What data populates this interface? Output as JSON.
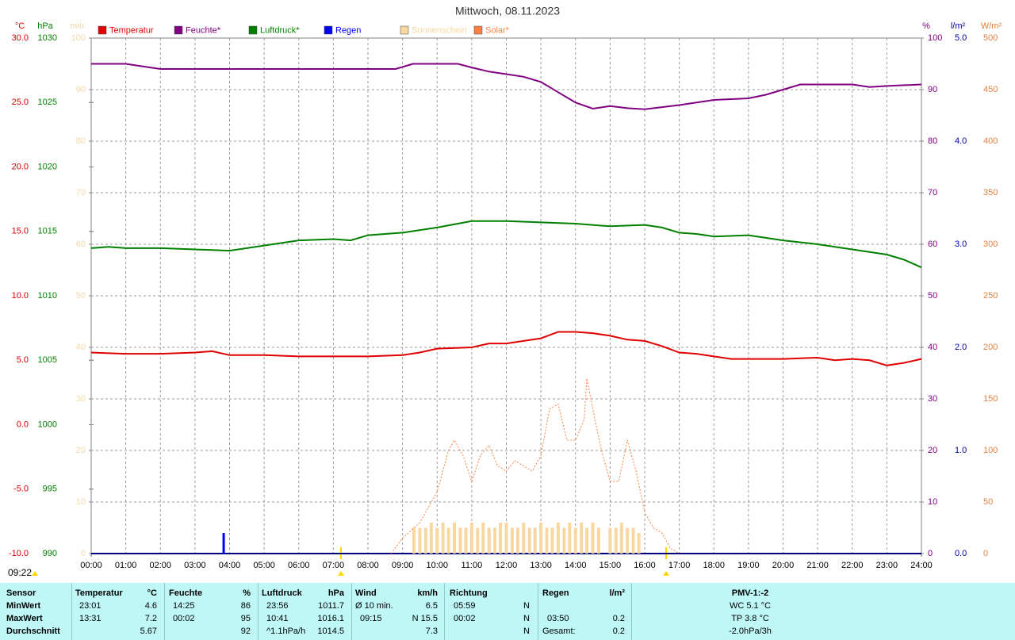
{
  "chart_data": {
    "type": "line",
    "title": "Mittwoch, 08.11.2023",
    "annotation": "09:22",
    "xlim": [
      0,
      24
    ],
    "xticks": [
      {
        "value": 0,
        "label": "00:00"
      },
      {
        "value": 1,
        "label": "01:00"
      },
      {
        "value": 2,
        "label": "02:00"
      },
      {
        "value": 3,
        "label": "03:00"
      },
      {
        "value": 4,
        "label": "04:00"
      },
      {
        "value": 5,
        "label": "05:00"
      },
      {
        "value": 6,
        "label": "06:00"
      },
      {
        "value": 7,
        "label": "07:00"
      },
      {
        "value": 8,
        "label": "08:00"
      },
      {
        "value": 9,
        "label": "09:00"
      },
      {
        "value": 10,
        "label": "10:00"
      },
      {
        "value": 11,
        "label": "11:00"
      },
      {
        "value": 12,
        "label": "12:00"
      },
      {
        "value": 13,
        "label": "13:00"
      },
      {
        "value": 14,
        "label": "14:00"
      },
      {
        "value": 15,
        "label": "15:00"
      },
      {
        "value": 16,
        "label": "16:00"
      },
      {
        "value": 17,
        "label": "17:00"
      },
      {
        "value": 18,
        "label": "18:00"
      },
      {
        "value": 19,
        "label": "19:00"
      },
      {
        "value": 20,
        "label": "20:00"
      },
      {
        "value": 21,
        "label": "21:00"
      },
      {
        "value": 22,
        "label": "22:00"
      },
      {
        "value": 23,
        "label": "23:00"
      },
      {
        "value": 24,
        "label": "24:00"
      }
    ],
    "grid": true,
    "axes": [
      {
        "label": "°C",
        "color": "#e00000",
        "lim": [
          -10,
          30
        ],
        "ticks": [
          {
            "value": 30,
            "label": "30.0"
          },
          {
            "value": 25,
            "label": "25.0"
          },
          {
            "value": 20,
            "label": "20.0"
          },
          {
            "value": 15,
            "label": "15.0"
          },
          {
            "value": 10,
            "label": "10.0"
          },
          {
            "value": 5,
            "label": "5.0"
          },
          {
            "value": 0,
            "label": "0.0"
          },
          {
            "value": -5,
            "label": "-5.0"
          },
          {
            "value": -10,
            "label": "-10.0"
          }
        ]
      },
      {
        "label": "hPa",
        "color": "#008000",
        "lim": [
          990,
          1030
        ],
        "ticks": [
          1030,
          1025,
          1020,
          1015,
          1010,
          1005,
          1000,
          995,
          990
        ]
      },
      {
        "label": "min",
        "color": "#f0d8a8",
        "lim": [
          0,
          100
        ],
        "ticks": [
          100,
          90,
          80,
          70,
          60,
          50,
          40,
          30,
          20,
          10,
          0
        ]
      },
      {
        "label": "%",
        "color": "#800080",
        "lim": [
          0,
          100
        ],
        "ticks": [
          100,
          90,
          80,
          70,
          60,
          50,
          40,
          30,
          20,
          10,
          0
        ],
        "grid": true
      },
      {
        "label": "l/m²",
        "color": "#0000a0",
        "lim": [
          0,
          5
        ],
        "ticks": [
          {
            "value": 5,
            "label": "5.0"
          },
          {
            "value": 4,
            "label": "4.0"
          },
          {
            "value": 3,
            "label": "3.0"
          },
          {
            "value": 2,
            "label": "2.0"
          },
          {
            "value": 1,
            "label": "1.0"
          },
          {
            "value": 0,
            "label": "0.0"
          }
        ]
      },
      {
        "label": "W/m²",
        "color": "#e08040",
        "lim": [
          0,
          500
        ],
        "ticks": [
          500,
          450,
          400,
          350,
          300,
          250,
          200,
          150,
          100,
          50,
          0
        ]
      }
    ],
    "series": [
      {
        "name": "Temperatur",
        "color": "#e00000",
        "axis": 0,
        "mark": "line",
        "x": [
          0,
          1,
          2,
          3,
          3.5,
          4,
          5,
          6,
          7,
          8,
          9,
          9.5,
          10,
          11,
          11.5,
          12,
          12.5,
          13,
          13.5,
          14,
          14.5,
          15,
          15.5,
          16,
          16.5,
          17,
          17.5,
          18,
          18.5,
          19,
          20,
          21,
          21.5,
          22,
          22.5,
          23,
          23.5,
          24
        ],
        "values": [
          5.6,
          5.5,
          5.5,
          5.6,
          5.7,
          5.4,
          5.4,
          5.3,
          5.3,
          5.3,
          5.4,
          5.6,
          5.9,
          6.0,
          6.3,
          6.3,
          6.5,
          6.7,
          7.2,
          7.2,
          7.1,
          6.9,
          6.6,
          6.5,
          6.1,
          5.6,
          5.5,
          5.3,
          5.1,
          5.1,
          5.1,
          5.2,
          5.0,
          5.1,
          5.0,
          4.6,
          4.8,
          5.1
        ]
      },
      {
        "name": "Feuchte*",
        "color": "#800080",
        "axis": 3,
        "mark": "line",
        "x": [
          0,
          1,
          1.5,
          2,
          4,
          6,
          8,
          8.8,
          9.3,
          10,
          10.6,
          11,
          11.5,
          12,
          12.5,
          13,
          13.5,
          14,
          14.5,
          15,
          15.5,
          16,
          16.5,
          17,
          17.5,
          18,
          19,
          19.5,
          20,
          20.5,
          21,
          22,
          22.5,
          23,
          24
        ],
        "values": [
          95,
          95,
          94.5,
          94,
          94,
          94,
          94,
          94,
          95,
          95,
          95,
          94.3,
          93.5,
          93,
          92.5,
          91.5,
          89.5,
          87.5,
          86.3,
          86.8,
          86.4,
          86.2,
          86.6,
          87,
          87.5,
          88,
          88.3,
          89,
          90,
          91,
          91,
          91,
          90.5,
          90.7,
          91
        ]
      },
      {
        "name": "Luftdruck*",
        "color": "#008000",
        "axis": 1,
        "mark": "line",
        "x": [
          0,
          0.5,
          1,
          2,
          3,
          4,
          5,
          6,
          7,
          7.5,
          8,
          9,
          10,
          11,
          12,
          13,
          14,
          15,
          16,
          16.5,
          17,
          17.5,
          18,
          19,
          20,
          21,
          22,
          23,
          23.5,
          24
        ],
        "values": [
          1013.7,
          1013.8,
          1013.7,
          1013.7,
          1013.6,
          1013.5,
          1013.9,
          1014.3,
          1014.4,
          1014.3,
          1014.7,
          1014.9,
          1015.3,
          1015.8,
          1015.8,
          1015.7,
          1015.6,
          1015.4,
          1015.5,
          1015.3,
          1014.9,
          1014.8,
          1014.6,
          1014.7,
          1014.3,
          1014.0,
          1013.6,
          1013.2,
          1012.8,
          1012.2
        ]
      },
      {
        "name": "Regen",
        "color": "#0000ff",
        "axis": 4,
        "mark": "bar",
        "x": [
          3.83
        ],
        "values": [
          0.2
        ]
      },
      {
        "name": "Sonnenschein",
        "color": "#f8d8a0",
        "axis": 2,
        "mark": "bar",
        "x": [
          9.33,
          9.5,
          9.67,
          9.83,
          10,
          10.17,
          10.33,
          10.5,
          10.67,
          10.83,
          11,
          11.17,
          11.33,
          11.5,
          11.67,
          11.83,
          12,
          12.17,
          12.33,
          12.5,
          12.67,
          12.83,
          13,
          13.17,
          13.33,
          13.5,
          13.67,
          13.83,
          14,
          14.17,
          14.33,
          14.5,
          14.67,
          15,
          15.17,
          15.33,
          15.5,
          15.67,
          15.83
        ],
        "values": [
          5,
          5,
          5,
          6,
          5,
          6,
          5,
          6,
          5,
          5,
          6,
          5,
          6,
          5,
          5,
          6,
          6,
          5,
          5,
          6,
          5,
          5,
          6,
          5,
          5,
          6,
          5,
          6,
          5,
          6,
          5,
          6,
          5,
          5,
          5,
          6,
          5,
          5,
          4
        ]
      },
      {
        "name": "Solar*",
        "color": "#ff8040",
        "axis": 5,
        "mark": "dashed",
        "x": [
          8.67,
          9,
          9.5,
          10,
          10.33,
          10.5,
          10.75,
          11,
          11.25,
          11.5,
          11.75,
          12,
          12.25,
          12.5,
          12.75,
          13,
          13.25,
          13.5,
          13.75,
          14,
          14.25,
          14.33,
          14.5,
          14.75,
          15,
          15.25,
          15.5,
          15.75,
          16,
          16.25,
          16.5,
          16.75,
          17
        ],
        "values": [
          0,
          15,
          30,
          60,
          100,
          110,
          95,
          70,
          95,
          105,
          85,
          80,
          90,
          85,
          80,
          95,
          140,
          145,
          110,
          110,
          130,
          170,
          140,
          100,
          70,
          70,
          110,
          80,
          40,
          25,
          20,
          5,
          0
        ]
      }
    ]
  },
  "table": {
    "header": [
      "Sensor",
      "Temperatur",
      "°C",
      "Feuchte",
      "%",
      "Luftdruck",
      "hPa",
      "Wind",
      "km/h",
      "Richtung",
      "Regen",
      "l/m²",
      "PMV-1:-2"
    ],
    "rows": [
      [
        "MinWert",
        "23:01",
        "4.6",
        "14:25",
        "86",
        "23:56",
        "1011.7",
        "Ø 10 min.",
        "6.5",
        "05:59",
        "N",
        null,
        null,
        "WC 5.1 °C"
      ],
      [
        "MaxWert",
        "13:31",
        "7.2",
        "00:02",
        "95",
        "10:41",
        "1016.1",
        "09:15",
        "N 15.5",
        "00:02",
        "N",
        "03:50",
        "0.2",
        "TP 3.8 °C"
      ],
      [
        "Durchschnitt",
        null,
        "5.67",
        null,
        "92",
        "^1.1hPa/h",
        "1014.5",
        null,
        "7.3",
        null,
        "N",
        "Gesamt:",
        "0.2",
        "-2.0hPa/3h"
      ]
    ]
  }
}
